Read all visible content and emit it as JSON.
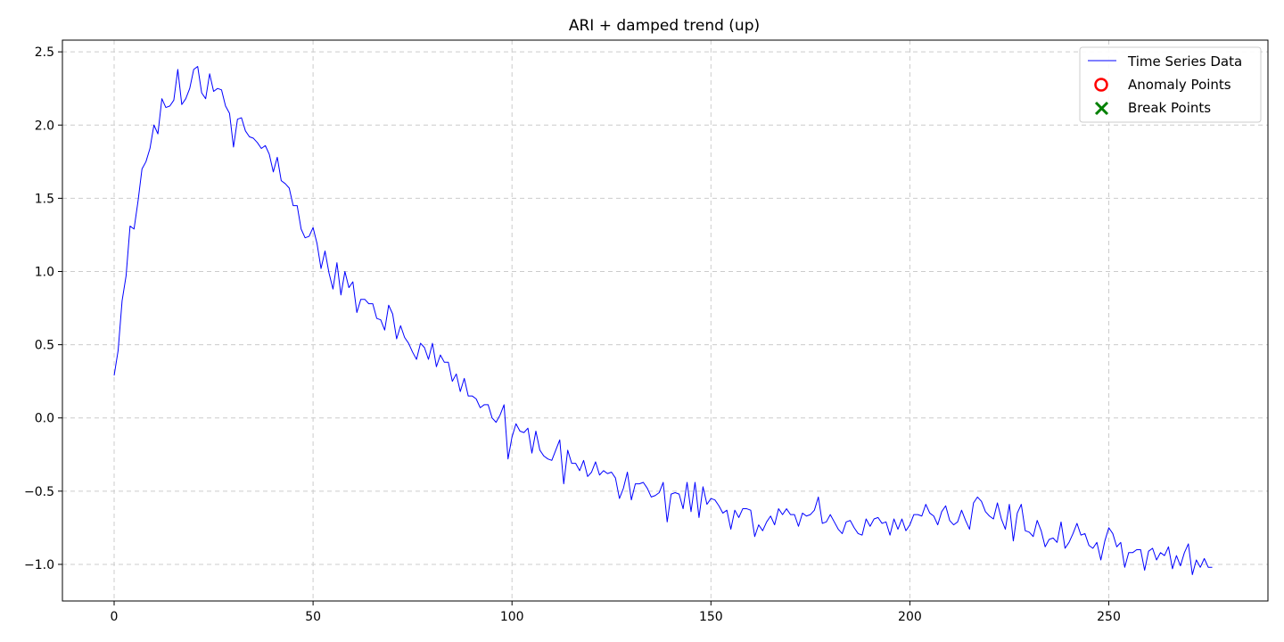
{
  "chart_data": {
    "type": "line",
    "title": "ARI + damped trend (up)",
    "xlabel": "",
    "ylabel": "",
    "xlim": [
      -13,
      290
    ],
    "ylim": [
      -1.25,
      2.58
    ],
    "xticks": [
      0,
      50,
      100,
      150,
      200,
      250
    ],
    "yticks": [
      -1.0,
      -0.5,
      0.0,
      0.5,
      1.0,
      1.5,
      2.0,
      2.5
    ],
    "xtick_labels": [
      "0",
      "50",
      "100",
      "150",
      "200",
      "250"
    ],
    "ytick_labels": [
      "−1.0",
      "−0.5",
      "0.0",
      "0.5",
      "1.0",
      "1.5",
      "2.0",
      "2.5"
    ],
    "grid": true,
    "legend_position": "top-right",
    "legend": [
      {
        "label": "Time Series Data",
        "marker": "line",
        "color": "#0000ff"
      },
      {
        "label": "Anomaly Points",
        "marker": "circle",
        "color": "#ff0000"
      },
      {
        "label": "Break Points",
        "marker": "x",
        "color": "#008000"
      }
    ],
    "series": [
      {
        "name": "Time Series Data",
        "color": "#0000ff",
        "x_start": 0,
        "x_step": 1,
        "values": [
          0.29,
          0.46,
          0.8,
          0.97,
          1.31,
          1.29,
          1.48,
          1.7,
          1.75,
          1.84,
          2.0,
          1.94,
          2.18,
          2.12,
          2.13,
          2.17,
          2.38,
          2.14,
          2.18,
          2.25,
          2.38,
          2.4,
          2.22,
          2.18,
          2.35,
          2.23,
          2.25,
          2.24,
          2.13,
          2.08,
          1.85,
          2.04,
          2.05,
          1.96,
          1.92,
          1.91,
          1.88,
          1.84,
          1.86,
          1.8,
          1.68,
          1.78,
          1.62,
          1.6,
          1.57,
          1.45,
          1.45,
          1.29,
          1.23,
          1.24,
          1.3,
          1.19,
          1.02,
          1.14,
          0.99,
          0.88,
          1.06,
          0.84,
          1.0,
          0.89,
          0.93,
          0.72,
          0.81,
          0.81,
          0.78,
          0.78,
          0.68,
          0.67,
          0.6,
          0.77,
          0.71,
          0.54,
          0.63,
          0.55,
          0.51,
          0.45,
          0.4,
          0.51,
          0.48,
          0.4,
          0.51,
          0.35,
          0.43,
          0.38,
          0.38,
          0.25,
          0.3,
          0.18,
          0.27,
          0.15,
          0.15,
          0.13,
          0.07,
          0.09,
          0.09,
          0.0,
          -0.03,
          0.02,
          0.09,
          -0.28,
          -0.13,
          -0.04,
          -0.09,
          -0.1,
          -0.07,
          -0.24,
          -0.09,
          -0.22,
          -0.26,
          -0.28,
          -0.29,
          -0.22,
          -0.15,
          -0.45,
          -0.22,
          -0.31,
          -0.31,
          -0.36,
          -0.29,
          -0.4,
          -0.37,
          -0.3,
          -0.39,
          -0.36,
          -0.38,
          -0.37,
          -0.41,
          -0.55,
          -0.48,
          -0.37,
          -0.56,
          -0.45,
          -0.45,
          -0.44,
          -0.48,
          -0.54,
          -0.53,
          -0.51,
          -0.44,
          -0.71,
          -0.52,
          -0.51,
          -0.52,
          -0.62,
          -0.44,
          -0.64,
          -0.44,
          -0.68,
          -0.47,
          -0.59,
          -0.55,
          -0.56,
          -0.6,
          -0.65,
          -0.63,
          -0.76,
          -0.63,
          -0.68,
          -0.62,
          -0.62,
          -0.63,
          -0.81,
          -0.73,
          -0.77,
          -0.71,
          -0.67,
          -0.73,
          -0.62,
          -0.66,
          -0.62,
          -0.66,
          -0.66,
          -0.74,
          -0.65,
          -0.67,
          -0.66,
          -0.63,
          -0.54,
          -0.72,
          -0.71,
          -0.66,
          -0.71,
          -0.76,
          -0.79,
          -0.71,
          -0.7,
          -0.75,
          -0.79,
          -0.8,
          -0.69,
          -0.74,
          -0.69,
          -0.68,
          -0.72,
          -0.71,
          -0.8,
          -0.69,
          -0.76,
          -0.69,
          -0.77,
          -0.73,
          -0.66,
          -0.66,
          -0.67,
          -0.59,
          -0.65,
          -0.67,
          -0.73,
          -0.64,
          -0.6,
          -0.7,
          -0.73,
          -0.71,
          -0.63,
          -0.7,
          -0.76,
          -0.58,
          -0.54,
          -0.57,
          -0.64,
          -0.67,
          -0.69,
          -0.58,
          -0.69,
          -0.76,
          -0.59,
          -0.84,
          -0.65,
          -0.59,
          -0.77,
          -0.78,
          -0.81,
          -0.7,
          -0.77,
          -0.88,
          -0.83,
          -0.82,
          -0.85,
          -0.71,
          -0.89,
          -0.85,
          -0.79,
          -0.72,
          -0.8,
          -0.79,
          -0.87,
          -0.89,
          -0.85,
          -0.97,
          -0.84,
          -0.75,
          -0.79,
          -0.88,
          -0.85,
          -1.02,
          -0.92,
          -0.92,
          -0.9,
          -0.9,
          -1.04,
          -0.91,
          -0.89,
          -0.97,
          -0.92,
          -0.94,
          -0.88,
          -1.03,
          -0.94,
          -1.01,
          -0.92,
          -0.86,
          -1.07,
          -0.97,
          -1.02,
          -0.96,
          -1.02,
          -1.02
        ]
      }
    ],
    "anomaly_points": [],
    "break_points": []
  }
}
